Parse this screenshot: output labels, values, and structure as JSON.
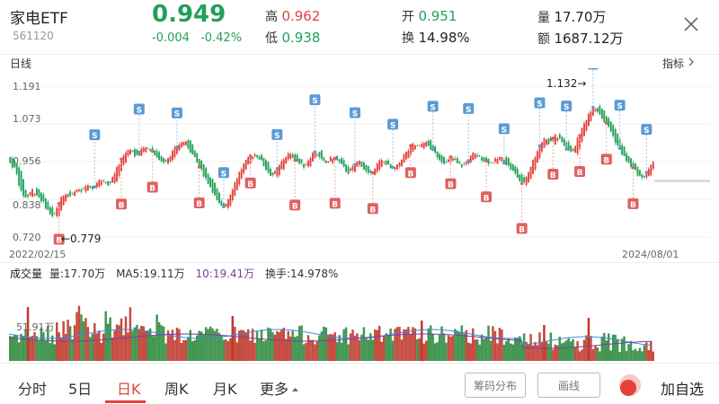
{
  "header": {
    "name": "家电ETF",
    "code": "561120",
    "price": "0.949",
    "change": "-0.004",
    "change_pct": "-0.42%",
    "high_label": "高",
    "high_value": "0.962",
    "low_label": "低",
    "low_value": "0.938",
    "open_label": "开",
    "open_value": "0.951",
    "turnover_label": "换",
    "turnover_value": "14.98%",
    "volume_label": "量",
    "volume_value": "17.70万",
    "amount_label": "额",
    "amount_value": "1687.12万"
  },
  "kline": {
    "period_label": "日线",
    "indicator_label": "指标",
    "y_ticks": [
      "1.191",
      "1.073",
      "0.956",
      "0.838",
      "0.720"
    ],
    "start_date": "2022/02/15",
    "end_date": "2024/08/01",
    "min_annotation": "←0.779",
    "max_annotation": "1.132→",
    "buy_marker": "B",
    "sell_marker": "S"
  },
  "volume": {
    "title": "成交量",
    "vol_text": "量:17.70万",
    "ma5_text": "MA5:19.11万",
    "ma10_text": "10:19.41万",
    "turnover_text": "换手:14.978%",
    "y_tick": "51.91万"
  },
  "tabs": {
    "items": [
      "分时",
      "5日",
      "日K",
      "周K",
      "月K",
      "更多"
    ],
    "active": "日K",
    "chip_btn": "筹码分布",
    "draw_btn": "画线",
    "add_watch": "加自选"
  },
  "colors": {
    "up": "#e5403a",
    "down": "#21a05a",
    "buy_marker": "#e06060",
    "sell_marker": "#5b9bd5",
    "ma10": "#7b3fa0"
  },
  "chart_data": {
    "type": "candlestick",
    "x_range": [
      "2022/02/15",
      "2024/08/01"
    ],
    "ylim": [
      0.72,
      1.191
    ],
    "min": 0.779,
    "max": 1.132,
    "last_close": 0.949,
    "points": [
      [
        0.97,
        0.95
      ],
      [
        0.96,
        0.93
      ],
      [
        0.93,
        0.86
      ],
      [
        0.86,
        0.84
      ],
      [
        0.84,
        0.87
      ],
      [
        0.87,
        0.85
      ],
      [
        0.85,
        0.83
      ],
      [
        0.83,
        0.8
      ],
      [
        0.8,
        0.78
      ],
      [
        0.78,
        0.83
      ],
      [
        0.83,
        0.86
      ],
      [
        0.86,
        0.85
      ],
      [
        0.85,
        0.87
      ],
      [
        0.87,
        0.86
      ],
      [
        0.86,
        0.88
      ],
      [
        0.88,
        0.87
      ],
      [
        0.87,
        0.89
      ],
      [
        0.89,
        0.9
      ],
      [
        0.9,
        0.88
      ],
      [
        0.88,
        0.91
      ],
      [
        0.91,
        0.95
      ],
      [
        0.95,
        0.98
      ],
      [
        0.98,
        1.0
      ],
      [
        1.0,
        0.97
      ],
      [
        0.97,
        0.99
      ],
      [
        0.99,
        1.0
      ],
      [
        1.0,
        0.99
      ],
      [
        0.99,
        0.97
      ],
      [
        0.97,
        0.95
      ],
      [
        0.95,
        0.97
      ],
      [
        0.97,
        0.99
      ],
      [
        0.99,
        1.01
      ],
      [
        1.01,
        1.02
      ],
      [
        1.02,
        0.99
      ],
      [
        0.99,
        0.96
      ],
      [
        0.96,
        0.93
      ],
      [
        0.93,
        0.9
      ],
      [
        0.9,
        0.87
      ],
      [
        0.87,
        0.83
      ],
      [
        0.83,
        0.81
      ],
      [
        0.81,
        0.84
      ],
      [
        0.84,
        0.88
      ],
      [
        0.88,
        0.92
      ],
      [
        0.92,
        0.95
      ],
      [
        0.95,
        0.97
      ],
      [
        0.97,
        0.98
      ],
      [
        0.98,
        0.96
      ],
      [
        0.96,
        0.93
      ],
      [
        0.93,
        0.91
      ],
      [
        0.91,
        0.93
      ],
      [
        0.93,
        0.96
      ],
      [
        0.96,
        0.98
      ],
      [
        0.98,
        0.97
      ],
      [
        0.97,
        0.95
      ],
      [
        0.95,
        0.94
      ],
      [
        0.94,
        0.97
      ],
      [
        0.97,
        0.99
      ],
      [
        0.99,
        0.96
      ],
      [
        0.96,
        0.95
      ],
      [
        0.95,
        0.97
      ],
      [
        0.97,
        0.96
      ],
      [
        0.96,
        0.94
      ],
      [
        0.94,
        0.92
      ],
      [
        0.92,
        0.94
      ],
      [
        0.94,
        0.96
      ],
      [
        0.96,
        0.93
      ],
      [
        0.93,
        0.91
      ],
      [
        0.91,
        0.94
      ],
      [
        0.94,
        0.96
      ],
      [
        0.96,
        0.95
      ],
      [
        0.95,
        0.93
      ],
      [
        0.93,
        0.94
      ],
      [
        0.94,
        0.97
      ],
      [
        0.97,
        0.99
      ],
      [
        0.99,
        1.01
      ],
      [
        1.01,
        1.0
      ],
      [
        1.0,
        1.02
      ],
      [
        1.02,
        1.0
      ],
      [
        1.0,
        0.98
      ],
      [
        0.98,
        0.96
      ],
      [
        0.96,
        0.95
      ],
      [
        0.95,
        0.97
      ],
      [
        0.97,
        0.95
      ],
      [
        0.95,
        0.94
      ],
      [
        0.94,
        0.96
      ],
      [
        0.96,
        0.98
      ],
      [
        0.98,
        0.97
      ],
      [
        0.97,
        0.96
      ],
      [
        0.96,
        0.95
      ],
      [
        0.95,
        0.96
      ],
      [
        0.96,
        0.97
      ],
      [
        0.97,
        0.95
      ],
      [
        0.95,
        0.93
      ],
      [
        0.93,
        0.91
      ],
      [
        0.91,
        0.88
      ],
      [
        0.88,
        0.92
      ],
      [
        0.92,
        0.96
      ],
      [
        0.96,
        1.0
      ],
      [
        1.0,
        1.03
      ],
      [
        1.03,
        1.01
      ],
      [
        1.01,
        1.04
      ],
      [
        1.04,
        1.02
      ],
      [
        1.02,
        1.0
      ],
      [
        1.0,
        0.98
      ],
      [
        0.98,
        1.02
      ],
      [
        1.02,
        1.06
      ],
      [
        1.06,
        1.1
      ],
      [
        1.1,
        1.13
      ],
      [
        1.13,
        1.11
      ],
      [
        1.11,
        1.08
      ],
      [
        1.08,
        1.06
      ],
      [
        1.06,
        1.02
      ],
      [
        1.02,
        0.99
      ],
      [
        0.99,
        0.96
      ],
      [
        0.96,
        0.94
      ],
      [
        0.94,
        0.92
      ],
      [
        0.92,
        0.9
      ],
      [
        0.9,
        0.93
      ],
      [
        0.93,
        0.95
      ]
    ]
  }
}
